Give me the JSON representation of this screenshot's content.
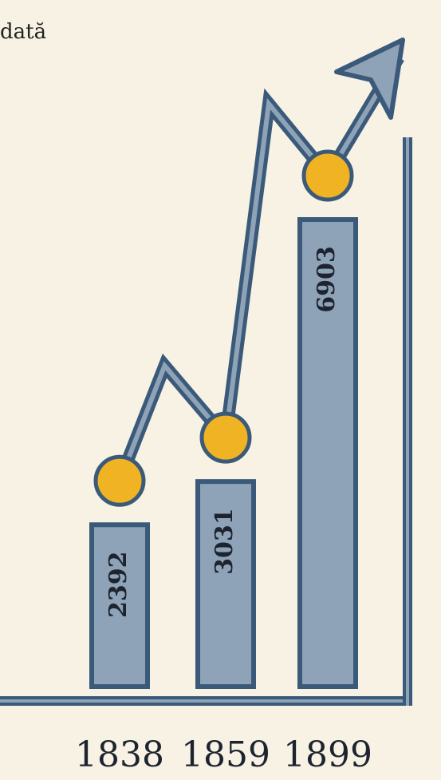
{
  "chart_data": {
    "type": "bar",
    "title": "dată",
    "categories": [
      "1838",
      "1859",
      "1899"
    ],
    "values": [
      2392,
      3031,
      6903
    ],
    "color": "#8fa3b8",
    "marker_color": "#f0b323",
    "line_color": "#3b5a7a"
  }
}
